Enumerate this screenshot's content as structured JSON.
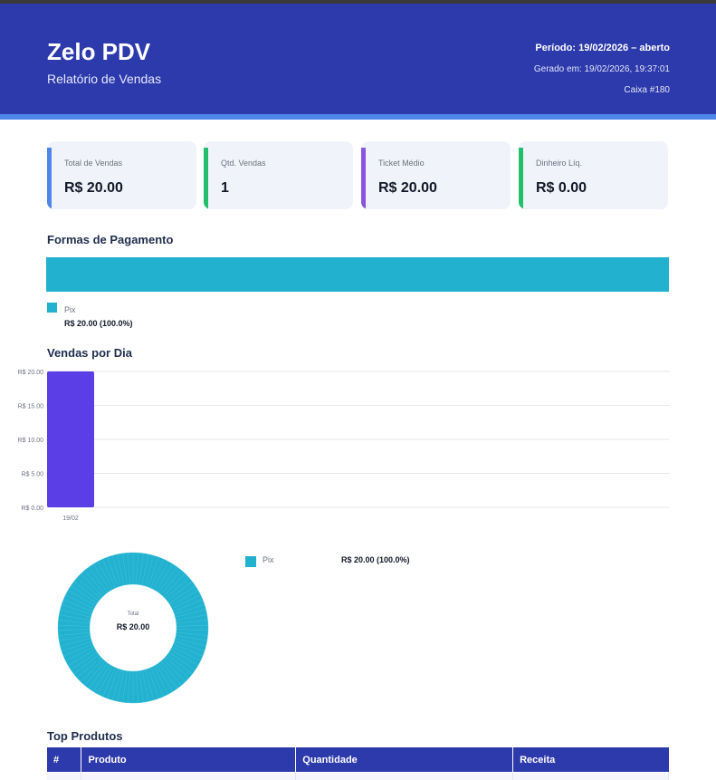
{
  "header": {
    "title": "Zelo PDV",
    "subtitle": "Relatório de Vendas",
    "period": "Período: 19/02/2026 – aberto",
    "generated": "Gerado em: 19/02/2026, 19:37:01",
    "caixa": "Caixa #180"
  },
  "colors": {
    "header": "#2c3aab",
    "pix": "#22b1cf",
    "bar": "#5b3ee6",
    "card_total": "#4f86ea",
    "card_qtd": "#22c06a",
    "card_ticket": "#8b55e0",
    "card_dinheiro": "#22c06a"
  },
  "cards": [
    {
      "label": "Total de Vendas",
      "value": "R$ 20.00"
    },
    {
      "label": "Qtd. Vendas",
      "value": "1"
    },
    {
      "label": "Ticket Médio",
      "value": "R$ 20.00"
    },
    {
      "label": "Dinheiro Líq.",
      "value": "R$ 0.00"
    }
  ],
  "payment": {
    "title": "Formas de Pagamento",
    "legend": {
      "name": "Pix",
      "value": "R$ 20.00 (100.0%)"
    }
  },
  "daily": {
    "title": "Vendas por Dia"
  },
  "donut": {
    "center_label": "Total",
    "center_value": "R$ 20.00",
    "legend": {
      "name": "Pix",
      "value": "R$ 20.00 (100.0%)"
    }
  },
  "top_products": {
    "title": "Top Produtos",
    "columns": [
      "#",
      "Produto",
      "Quantidade",
      "Receita"
    ]
  },
  "chart_data": [
    {
      "type": "bar",
      "title": "Vendas por Dia",
      "categories": [
        "19/02"
      ],
      "values": [
        20.0
      ],
      "ylim": [
        0,
        20
      ],
      "yticks": [
        "R$ 20.00",
        "R$ 15.00",
        "R$ 10.00",
        "R$ 5.00",
        "R$ 0.00"
      ],
      "ytick_values": [
        20,
        15,
        10,
        5,
        0
      ],
      "grid": true
    },
    {
      "type": "pie",
      "title": "",
      "categories": [
        "Pix"
      ],
      "values": [
        20.0
      ],
      "percent": [
        100.0
      ]
    }
  ]
}
